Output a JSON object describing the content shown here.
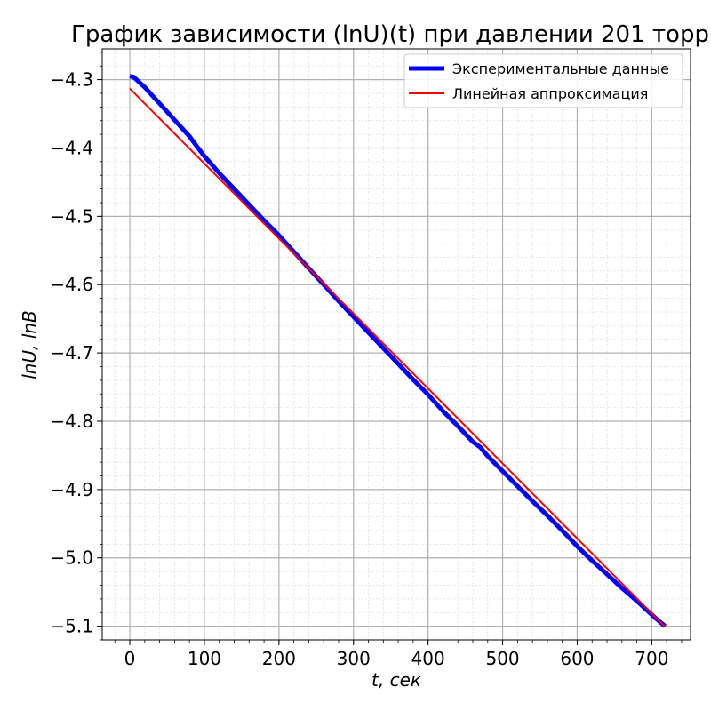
{
  "chart_data": {
    "type": "line",
    "title": "График зависимости (lnU)(t) при давлении 201 торр",
    "xlabel": "t, сек",
    "ylabel": "lnU, lnB",
    "xlim": [
      -37,
      752
    ],
    "ylim": [
      -5.12,
      -4.255
    ],
    "xticks": [
      0,
      100,
      200,
      300,
      400,
      500,
      600,
      700
    ],
    "yticks": [
      -5.1,
      -5.0,
      -4.9,
      -4.8,
      -4.7,
      -4.6,
      -4.5,
      -4.4,
      -4.3
    ],
    "ytick_labels": [
      "−5.1",
      "−5.0",
      "−4.9",
      "−4.8",
      "−4.7",
      "−4.6",
      "−4.5",
      "−4.4",
      "−4.3"
    ],
    "grid": true,
    "minor_grid": true,
    "legend_position": "top-right",
    "series": [
      {
        "name": "Экспериментальные данные",
        "color": "#0000ff",
        "x": [
          0,
          5,
          10,
          20,
          30,
          40,
          50,
          60,
          70,
          80,
          90,
          100,
          120,
          140,
          160,
          180,
          200,
          220,
          240,
          260,
          280,
          300,
          320,
          340,
          360,
          380,
          400,
          420,
          440,
          460,
          470,
          480,
          500,
          520,
          540,
          560,
          580,
          600,
          620,
          640,
          660,
          680,
          700,
          710,
          718
        ],
        "y": [
          -4.295,
          -4.296,
          -4.301,
          -4.311,
          -4.323,
          -4.335,
          -4.347,
          -4.359,
          -4.371,
          -4.383,
          -4.398,
          -4.412,
          -4.437,
          -4.46,
          -4.483,
          -4.506,
          -4.528,
          -4.552,
          -4.576,
          -4.6,
          -4.624,
          -4.647,
          -4.67,
          -4.693,
          -4.716,
          -4.739,
          -4.761,
          -4.785,
          -4.807,
          -4.83,
          -4.838,
          -4.851,
          -4.873,
          -4.895,
          -4.917,
          -4.938,
          -4.96,
          -4.983,
          -5.004,
          -5.024,
          -5.044,
          -5.063,
          -5.083,
          -5.093,
          -5.1
        ]
      },
      {
        "name": "Линейная аппроксимация",
        "color": "#ff0000",
        "x": [
          0,
          718
        ],
        "y": [
          -4.313,
          -5.101
        ]
      }
    ]
  }
}
